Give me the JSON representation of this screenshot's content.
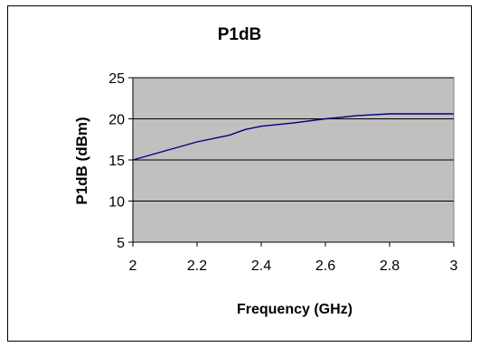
{
  "chart_data": {
    "type": "line",
    "title": "P1dB",
    "xlabel": "Frequency (GHz)",
    "ylabel": "P1dB (dBm)",
    "xlim": [
      2,
      3
    ],
    "ylim": [
      5,
      25
    ],
    "xticks": [
      2,
      2.2,
      2.4,
      2.6,
      2.8,
      3
    ],
    "yticks": [
      5,
      10,
      15,
      20,
      25
    ],
    "x_tick_labels": [
      "2",
      "2.2",
      "2.4",
      "2.6",
      "2.8",
      "3"
    ],
    "y_tick_labels": [
      "5",
      "10",
      "15",
      "20",
      "25"
    ],
    "grid": "horizontal",
    "plot_background": "#c0c0c0",
    "series": [
      {
        "color": "#000080",
        "x": [
          2.0,
          2.1,
          2.2,
          2.3,
          2.35,
          2.4,
          2.5,
          2.6,
          2.7,
          2.8,
          2.9,
          3.0
        ],
        "y": [
          15.0,
          16.1,
          17.2,
          18.0,
          18.7,
          19.1,
          19.5,
          20.0,
          20.4,
          20.6,
          20.6,
          20.6
        ]
      }
    ]
  }
}
